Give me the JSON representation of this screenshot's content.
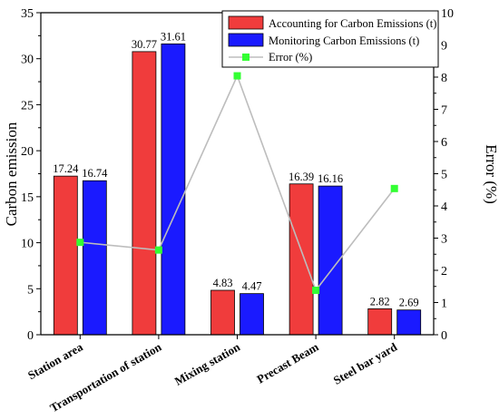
{
  "chart_data": {
    "type": "bar",
    "categories": [
      "Station area",
      "Transportation of station",
      "Mixing station",
      "Precast Beam",
      "Steel bar yard"
    ],
    "series": [
      {
        "name": "Accounting for Carbon Emissions (t)",
        "values": [
          17.24,
          30.77,
          4.83,
          16.39,
          2.82
        ],
        "color": "#f03c3c"
      },
      {
        "name": "Monitoring Carbon Emissions (t)",
        "values": [
          16.74,
          31.61,
          4.47,
          16.16,
          2.69
        ],
        "color": "#1a1aff"
      }
    ],
    "line_series": {
      "name": "Error (%)",
      "values": [
        2.87,
        2.63,
        8.04,
        1.38,
        4.54
      ],
      "color": "#bdbdbd",
      "marker_color": "#33ff33"
    },
    "value_labels": [
      [
        "17.24",
        "30.77",
        "4.83",
        "16.39",
        "2.82"
      ],
      [
        "16.74",
        "31.61",
        "4.47",
        "16.16",
        "2.69"
      ]
    ],
    "ylabel": "Carbon emission",
    "y2label": "Error (%)",
    "ylim": [
      0,
      35
    ],
    "y2lim": [
      0,
      10
    ],
    "yticks": [
      "0",
      "5",
      "10",
      "15",
      "20",
      "25",
      "30",
      "35"
    ],
    "y2ticks": [
      "0",
      "1",
      "2",
      "3",
      "4",
      "5",
      "6",
      "7",
      "8",
      "9",
      "10"
    ],
    "grid": false,
    "legend": "top-right"
  }
}
